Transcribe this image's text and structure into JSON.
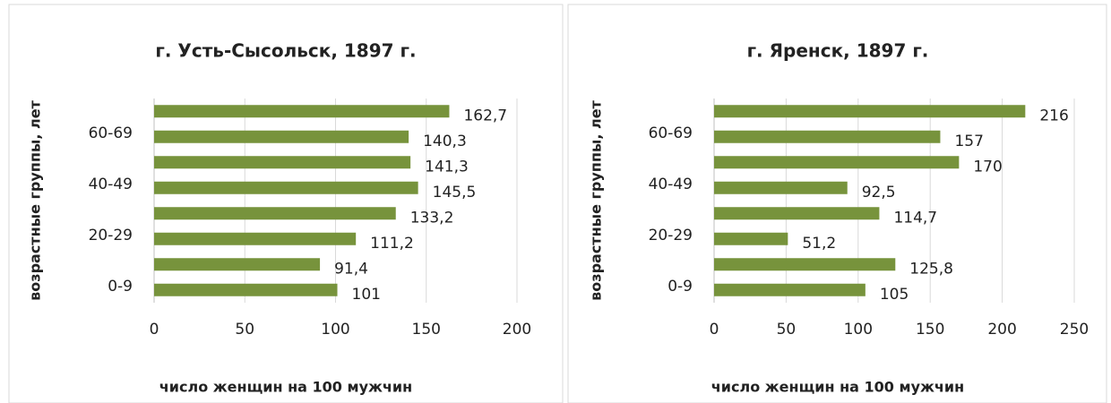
{
  "chart_data": [
    {
      "type": "barh",
      "title": "г. Усть-Сысольск, 1897 г.",
      "x_label": "число женщин на 100 мужчин",
      "y_label": "возрастные группы, лет",
      "categories": [
        "0-9",
        null,
        "20-29",
        null,
        "40-49",
        null,
        "60-69",
        null
      ],
      "values": [
        101,
        91.4,
        111.2,
        133.2,
        145.5,
        141.3,
        140.3,
        162.7
      ],
      "value_labels": [
        "101",
        "91,4",
        "111,2",
        "133,2",
        "145,5",
        "141,3",
        "140,3",
        "162,7"
      ],
      "color": "#77933c",
      "xlim": [
        0,
        200
      ],
      "xticks": [
        0,
        50,
        100,
        150,
        200
      ],
      "grid": true
    },
    {
      "type": "barh",
      "title": "г. Яренск, 1897 г.",
      "x_label": "число женщин на 100 мужчин",
      "y_label": "возрастные группы, лет",
      "categories": [
        "0-9",
        null,
        "20-29",
        null,
        "40-49",
        null,
        "60-69",
        null
      ],
      "values": [
        105,
        125.8,
        51.2,
        114.7,
        92.5,
        170,
        157,
        216
      ],
      "value_labels": [
        "105",
        "125,8",
        "51,2",
        "114,7",
        "92,5",
        "170",
        "157",
        "216"
      ],
      "color": "#77933c",
      "xlim": [
        0,
        250
      ],
      "xticks": [
        0,
        50,
        100,
        150,
        200,
        250
      ],
      "grid": true
    }
  ]
}
